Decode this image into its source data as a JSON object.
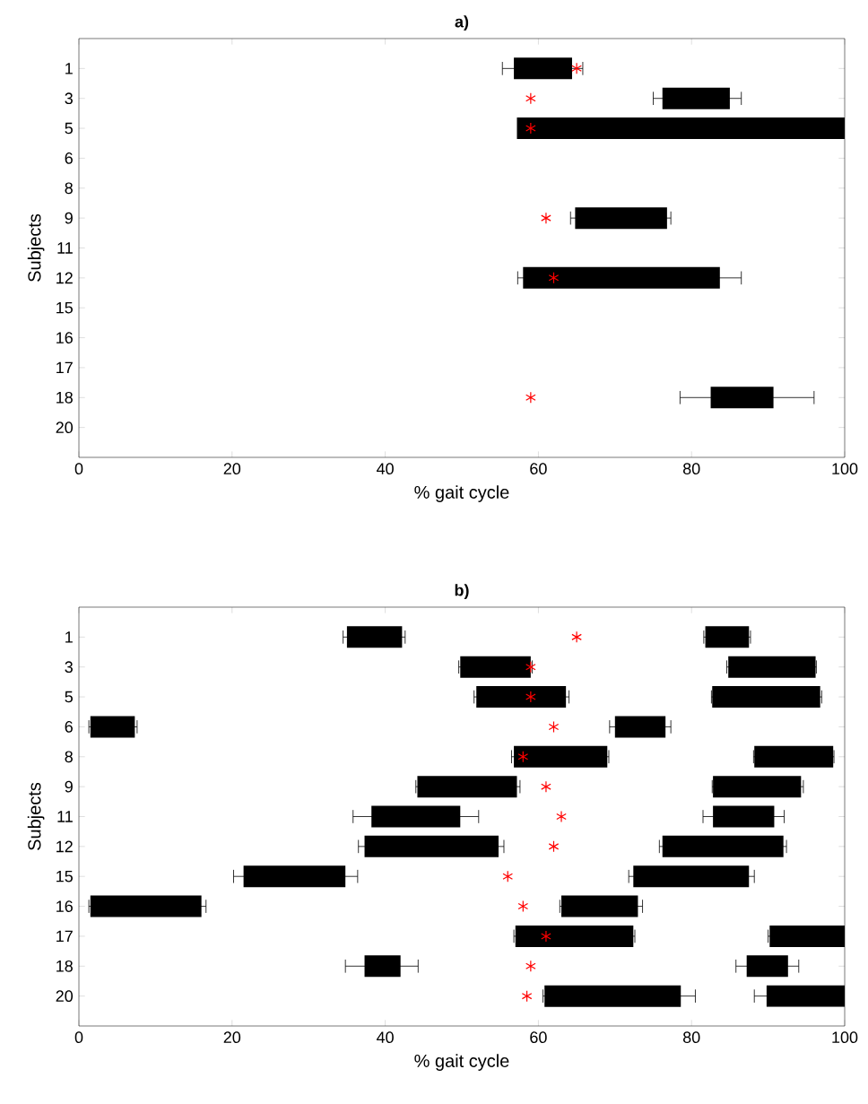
{
  "chart_data": [
    {
      "type": "bar",
      "orientation": "horizontal",
      "title": "**a)**",
      "xlabel": "% gait cycle",
      "ylabel": "Subjects",
      "categories": [
        "1",
        "3",
        "5",
        "6",
        "8",
        "9",
        "11",
        "12",
        "15",
        "16",
        "17",
        "18",
        "20"
      ],
      "xlim": [
        0,
        100
      ],
      "xticks": [
        0,
        20,
        40,
        60,
        80,
        100
      ],
      "series": [
        {
          "color": "#000000",
          "base": [
            56.8,
            76.2,
            57.2,
            null,
            null,
            64.8,
            null,
            58,
            null,
            null,
            null,
            82.5,
            null
          ],
          "values": [
            7.6,
            8.8,
            42.8,
            null,
            null,
            12,
            null,
            25.7,
            null,
            null,
            null,
            8.2,
            null
          ],
          "errors": [
            [
              55.3,
              65.8
            ],
            [
              75,
              86.5
            ],
            null,
            null,
            null,
            [
              64.2,
              77.3
            ],
            null,
            [
              57.3,
              86.5
            ],
            null,
            null,
            null,
            [
              78.5,
              96
            ],
            null
          ]
        },
        {
          "type": "scatter",
          "color": "#ff0000",
          "marker": "cross",
          "values": [
            65,
            59,
            59,
            null,
            null,
            61,
            null,
            62,
            null,
            null,
            null,
            59,
            null
          ]
        }
      ]
    },
    {
      "type": "bar",
      "orientation": "horizontal",
      "title": "**b)**",
      "xlabel": "% gait cycle",
      "ylabel": "Subjects",
      "categories": [
        "1",
        "3",
        "5",
        "6",
        "8",
        "9",
        "11",
        "12",
        "15",
        "16",
        "17",
        "18",
        "20"
      ],
      "xlim": [
        0,
        100
      ],
      "xticks": [
        0,
        20,
        40,
        60,
        80,
        100
      ],
      "series": [
        {
          "color": "#000000",
          "base": [
            35,
            49.8,
            51.9,
            1.5,
            56.8,
            44.2,
            38.2,
            37.3,
            21.5,
            1.5,
            57,
            37.3,
            60.8
          ],
          "values": [
            7.2,
            9.2,
            11.7,
            5.8,
            12.2,
            13,
            11.6,
            17.5,
            13.3,
            14.5,
            15.4,
            4.7,
            17.8
          ],
          "errors": [
            [
              34.5,
              42.6
            ],
            [
              49.6,
              59.2
            ],
            [
              51.6,
              64
            ],
            [
              1.3,
              7.6
            ],
            [
              56.5,
              69.2
            ],
            [
              44,
              57.6
            ],
            [
              35.8,
              52.2
            ],
            [
              36.5,
              55.5
            ],
            [
              20.2,
              36.4
            ],
            [
              1.3,
              16.6
            ],
            [
              56.8,
              72.6
            ],
            [
              34.8,
              44.3
            ],
            [
              60.6,
              80.5
            ]
          ]
        },
        {
          "color": "#000000",
          "base": [
            81.8,
            84.8,
            82.7,
            70,
            88.2,
            82.8,
            82.8,
            76.2,
            72.4,
            63,
            90.2,
            87.2,
            89.8
          ],
          "values": [
            5.7,
            11.4,
            14.1,
            6.6,
            10.3,
            11.5,
            8,
            15.8,
            15.1,
            10,
            9.8,
            5.4,
            10.2
          ],
          "errors": [
            [
              81.6,
              87.7
            ],
            [
              84.6,
              96.3
            ],
            [
              82.6,
              97
            ],
            [
              69.3,
              77.3
            ],
            [
              88.1,
              98.6
            ],
            [
              82.7,
              94.6
            ],
            [
              81.5,
              92.1
            ],
            [
              75.8,
              92.4
            ],
            [
              71.8,
              88.2
            ],
            [
              62.8,
              73.6
            ],
            [
              90,
              100
            ],
            [
              85.8,
              94
            ],
            [
              88.2,
              100
            ]
          ]
        },
        {
          "type": "scatter",
          "color": "#ff0000",
          "marker": "cross",
          "values": [
            65,
            59,
            59,
            62,
            58,
            61,
            63,
            62,
            56,
            58,
            61,
            59,
            58.5
          ]
        }
      ]
    }
  ]
}
